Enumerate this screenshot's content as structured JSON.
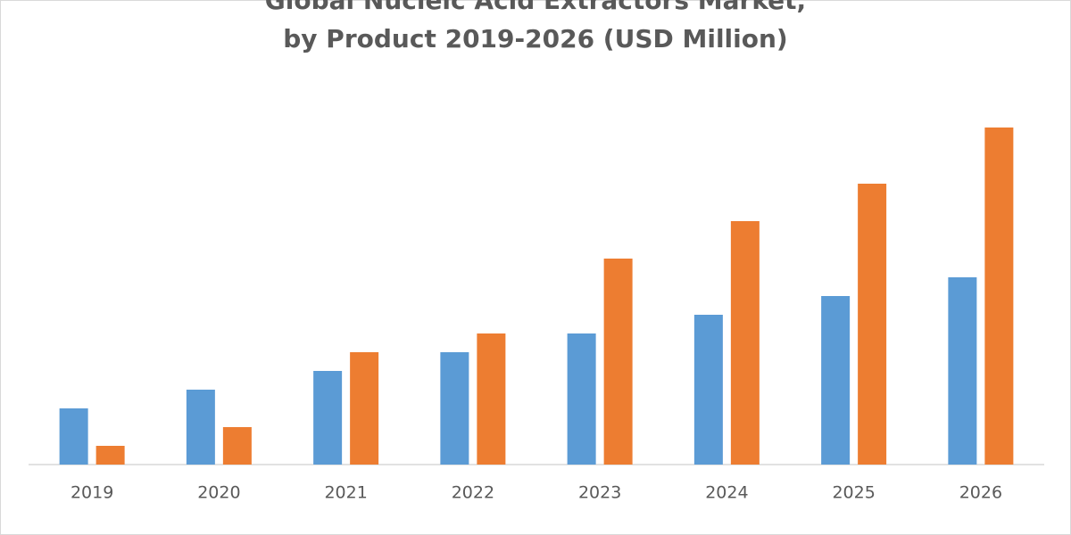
{
  "chart_data": {
    "type": "bar",
    "title": [
      "Global Nucleic Acid Extractors Market,",
      "by Product 2019-2026 (USD Million)"
    ],
    "categories": [
      "2019",
      "2020",
      "2021",
      "2022",
      "2023",
      "2024",
      "2025",
      "2026"
    ],
    "series": [
      {
        "color": "#5b9bd5",
        "values": [
          3,
          4,
          5,
          6,
          7,
          8,
          9,
          10
        ]
      },
      {
        "color": "#ed7d31",
        "values": [
          1,
          2,
          6,
          7,
          11,
          13,
          15,
          18
        ]
      }
    ],
    "ylim": [
      0,
      20
    ]
  }
}
